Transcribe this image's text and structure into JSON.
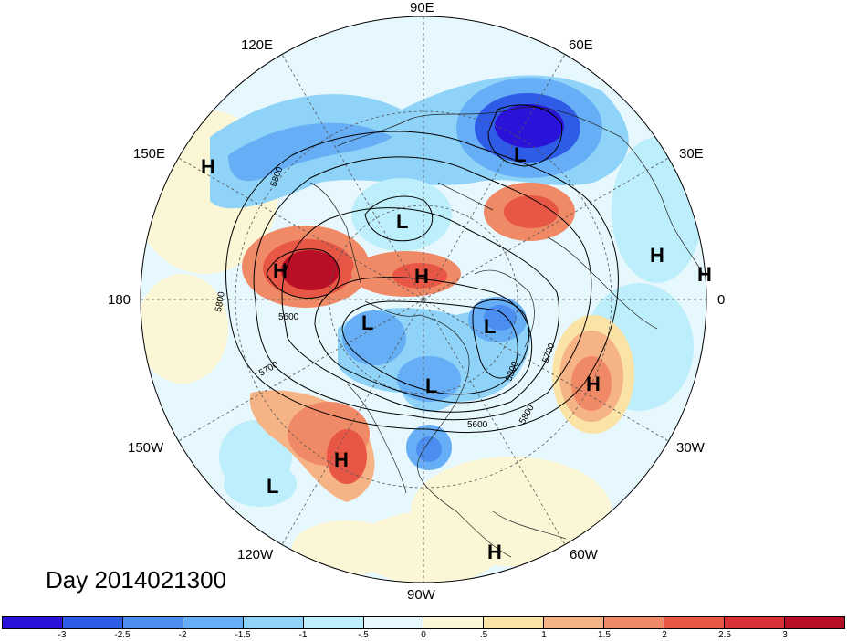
{
  "title": "Day 2014021300",
  "longitude_labels": [
    {
      "id": "90E",
      "text": "90E"
    },
    {
      "id": "60E",
      "text": "60E"
    },
    {
      "id": "120E",
      "text": "120E"
    },
    {
      "id": "150E",
      "text": "150E"
    },
    {
      "id": "30E",
      "text": "30E"
    },
    {
      "id": "180",
      "text": "180"
    },
    {
      "id": "0",
      "text": "0"
    },
    {
      "id": "150W",
      "text": "150W"
    },
    {
      "id": "30W",
      "text": "30W"
    },
    {
      "id": "120W",
      "text": "120W"
    },
    {
      "id": "60W",
      "text": "60W"
    },
    {
      "id": "90W",
      "text": "90W"
    }
  ],
  "pressure_centers": [
    {
      "type": "H",
      "text": "H"
    },
    {
      "type": "L",
      "text": "L"
    },
    {
      "type": "L",
      "text": "L"
    },
    {
      "type": "H",
      "text": "H"
    },
    {
      "type": "H",
      "text": "H"
    },
    {
      "type": "H",
      "text": "H"
    },
    {
      "type": "H",
      "text": "H"
    },
    {
      "type": "L",
      "text": "L"
    },
    {
      "type": "L",
      "text": "L"
    },
    {
      "type": "L",
      "text": "L"
    },
    {
      "type": "H",
      "text": "H"
    },
    {
      "type": "H",
      "text": "H"
    },
    {
      "type": "L",
      "text": "L"
    },
    {
      "type": "H",
      "text": "H"
    }
  ],
  "contour_labels": [
    "5800",
    "5800",
    "5600",
    "5700",
    "5300",
    "5700",
    "5600",
    "5800"
  ],
  "colorbar": {
    "colors": [
      "#2a12d8",
      "#2f5ce6",
      "#4b8ef0",
      "#66aef5",
      "#8fd3f8",
      "#bdeefb",
      "#e6f8fd",
      "#fbf7d6",
      "#fbe3a6",
      "#f6b486",
      "#f08a66",
      "#e85745",
      "#d93236",
      "#b80f26"
    ],
    "ticks": [
      "-3",
      "-2.5",
      "-2",
      "-1.5",
      "-1",
      "-.5",
      "0",
      ".5",
      "1",
      "1.5",
      "2",
      "2.5",
      "3"
    ]
  }
}
